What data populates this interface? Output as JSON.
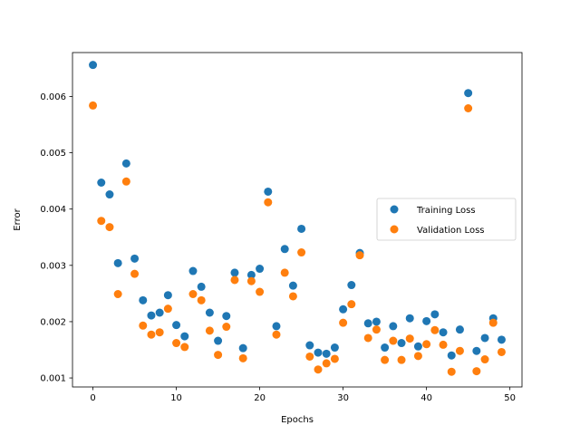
{
  "chart_data": {
    "type": "scatter",
    "title": "",
    "xlabel": "Epochs",
    "ylabel": "Error",
    "xlim": [
      -2.45,
      51.45
    ],
    "ylim": [
      0.00084,
      0.00678
    ],
    "xticks": [
      0,
      10,
      20,
      30,
      40,
      50
    ],
    "yticks": [
      0.001,
      0.002,
      0.003,
      0.004,
      0.005,
      0.006
    ],
    "ytick_labels": [
      "0.001",
      "0.002",
      "0.003",
      "0.004",
      "0.005",
      "0.006"
    ],
    "grid": false,
    "legend_position": "center-right",
    "x": [
      0,
      1,
      2,
      3,
      4,
      5,
      6,
      7,
      8,
      9,
      10,
      11,
      12,
      13,
      14,
      15,
      16,
      17,
      18,
      19,
      20,
      21,
      22,
      23,
      24,
      25,
      26,
      27,
      28,
      29,
      30,
      31,
      32,
      33,
      34,
      35,
      36,
      37,
      38,
      39,
      40,
      41,
      42,
      43,
      44,
      45,
      46,
      47,
      48,
      49
    ],
    "series": [
      {
        "name": "Training Loss",
        "color": "#1f77b4",
        "values": [
          0.00656,
          0.00447,
          0.00426,
          0.00304,
          0.00481,
          0.00312,
          0.00238,
          0.00211,
          0.00216,
          0.00247,
          0.00194,
          0.00174,
          0.0029,
          0.00262,
          0.00216,
          0.00166,
          0.0021,
          0.00287,
          0.00153,
          0.00283,
          0.00294,
          0.00431,
          0.00192,
          0.00329,
          0.00264,
          0.00365,
          0.00158,
          0.00145,
          0.00143,
          0.00154,
          0.00222,
          0.00265,
          0.00322,
          0.00197,
          0.002,
          0.00154,
          0.00192,
          0.00162,
          0.00206,
          0.00156,
          0.00201,
          0.00213,
          0.00181,
          0.0014,
          0.00186,
          0.00606,
          0.00148,
          0.00171,
          0.00206,
          0.00168
        ]
      },
      {
        "name": "Validation Loss",
        "color": "#ff7f0e",
        "values": [
          0.00584,
          0.00379,
          0.00368,
          0.00249,
          0.00449,
          0.00285,
          0.00193,
          0.00177,
          0.00181,
          0.00223,
          0.00162,
          0.00155,
          0.00249,
          0.00238,
          0.00184,
          0.00141,
          0.00191,
          0.00274,
          0.00135,
          0.00272,
          0.00253,
          0.00412,
          0.00177,
          0.00287,
          0.00245,
          0.00323,
          0.00138,
          0.00115,
          0.00126,
          0.00134,
          0.00198,
          0.00231,
          0.00318,
          0.00171,
          0.00186,
          0.00132,
          0.00166,
          0.00132,
          0.0017,
          0.00139,
          0.0016,
          0.00185,
          0.00159,
          0.00111,
          0.00148,
          0.00579,
          0.00112,
          0.00133,
          0.00198,
          0.00146
        ]
      }
    ]
  }
}
